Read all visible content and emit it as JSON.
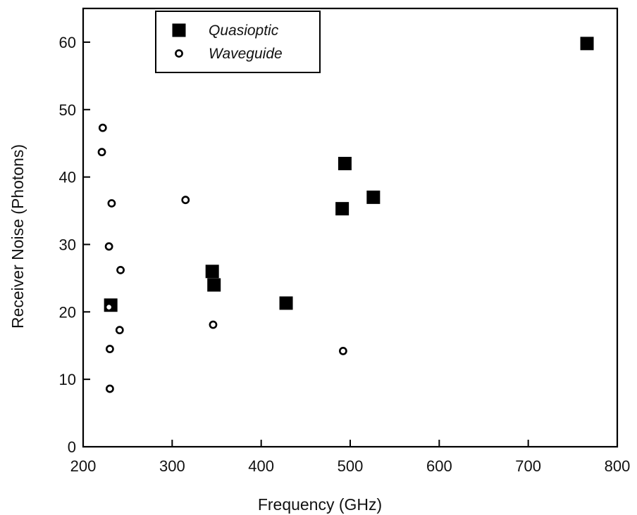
{
  "chart_data": {
    "type": "scatter",
    "title": "",
    "xlabel": "Frequency (GHz)",
    "ylabel": "Receiver Noise (Photons)",
    "xlim": [
      200,
      800
    ],
    "ylim": [
      0,
      65
    ],
    "x_ticks": [
      200,
      300,
      400,
      500,
      600,
      700,
      800
    ],
    "y_ticks": [
      0,
      10,
      20,
      30,
      40,
      50,
      60
    ],
    "grid": false,
    "legend_placement": "top-left",
    "series": [
      {
        "name": "Quasioptic",
        "marker": "filled-square",
        "color": "#000000",
        "points": [
          {
            "x": 231,
            "y": 21
          },
          {
            "x": 345,
            "y": 26
          },
          {
            "x": 347,
            "y": 24
          },
          {
            "x": 428,
            "y": 21.3
          },
          {
            "x": 491,
            "y": 35.3
          },
          {
            "x": 494,
            "y": 42
          },
          {
            "x": 526,
            "y": 37
          },
          {
            "x": 766,
            "y": 59.8
          }
        ]
      },
      {
        "name": "Waveguide",
        "marker": "open-circle",
        "color": "#000000",
        "points": [
          {
            "x": 222,
            "y": 47.3
          },
          {
            "x": 221,
            "y": 43.7
          },
          {
            "x": 232,
            "y": 36.1
          },
          {
            "x": 229,
            "y": 29.7
          },
          {
            "x": 242,
            "y": 26.2
          },
          {
            "x": 229,
            "y": 20.7
          },
          {
            "x": 241,
            "y": 17.3
          },
          {
            "x": 230,
            "y": 14.5
          },
          {
            "x": 230,
            "y": 8.6
          },
          {
            "x": 315,
            "y": 36.6
          },
          {
            "x": 346,
            "y": 18.1
          },
          {
            "x": 492,
            "y": 14.2
          }
        ]
      }
    ]
  }
}
